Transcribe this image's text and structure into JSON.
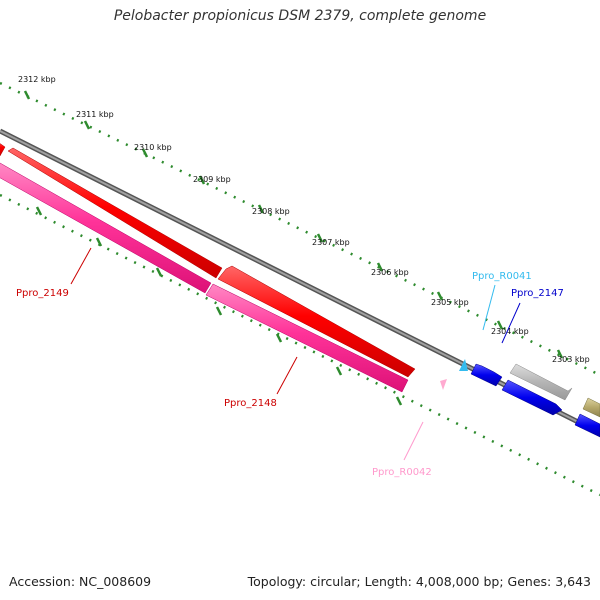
{
  "title": "Pelobacter propionicus DSM 2379, complete genome",
  "accession": "Accession: NC_008609",
  "stats": "Topology: circular; Length: 4,008,000 bp; Genes: 3,643",
  "colors": {
    "background": "#ffffff",
    "backbone": "#808080",
    "tick_major": "#2e8b2e",
    "tick_minor": "#2e8b2e",
    "cds_red": "#ff0000",
    "cds_pink": "#ff3399",
    "cds_blue": "#0000ee",
    "cds_gray": "#b0b0b0",
    "cds_olive": "#b5a86a",
    "rna_cyan": "#33bbee",
    "rna_pink": "#ff99cc"
  },
  "scale_labels": [
    "2312 kbp",
    "2311 kbp",
    "2310 kbp",
    "2309 kbp",
    "2308 kbp",
    "2307 kbp",
    "2306 kbp",
    "2305 kbp",
    "2304 kbp",
    "2303 kbp"
  ],
  "genes": [
    {
      "id": "Ppro_2149",
      "color": "#cc0000"
    },
    {
      "id": "Ppro_2148",
      "color": "#cc0000"
    },
    {
      "id": "Ppro_R0042",
      "color": "#ff99cc"
    },
    {
      "id": "Ppro_R0041",
      "color": "#33bbee"
    },
    {
      "id": "Ppro_2147",
      "color": "#0000cc"
    }
  ]
}
